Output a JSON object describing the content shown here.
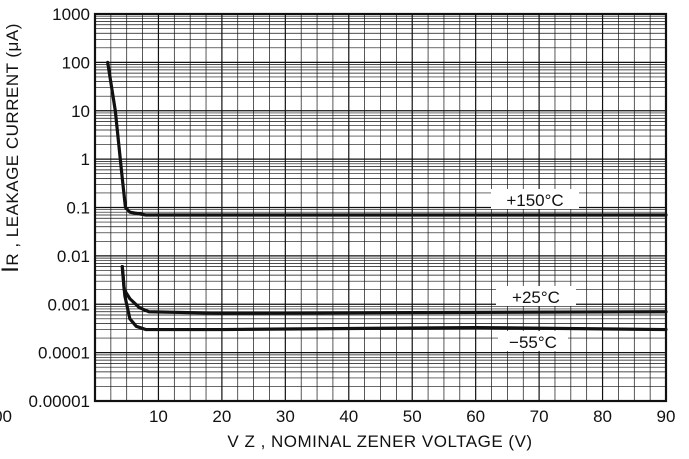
{
  "chart_data": {
    "type": "line",
    "title": "",
    "xlabel": "V Z , NOMINAL ZENER VOLTAGE (V)",
    "ylabel": "IR , LEAKAGE CURRENT (μA)",
    "ylabel_parts": {
      "symbol": "I",
      "subscript": "R",
      "text": " ,  LEAKAGE  CURRENT  (μA)"
    },
    "x_scale": "linear",
    "y_scale": "log",
    "xlim": [
      0,
      90
    ],
    "ylim": [
      1e-05,
      1000
    ],
    "x_ticks": [
      0,
      10,
      20,
      30,
      40,
      50,
      60,
      70,
      80,
      90
    ],
    "x_tick_labels": [
      "00",
      "10",
      "20",
      "30",
      "40",
      "50",
      "60",
      "70",
      "80",
      "90"
    ],
    "y_ticks": [
      1e-05,
      0.0001,
      0.001,
      0.01,
      0.1,
      1,
      10,
      100,
      1000
    ],
    "y_tick_labels": [
      "0.00001",
      "0.0001",
      "0.001",
      "0.01",
      "0.1",
      "1",
      "10",
      "100",
      "1000"
    ],
    "grid": true,
    "series": [
      {
        "name": "+150°C",
        "points": [
          [
            2,
            100
          ],
          [
            3.2,
            10
          ],
          [
            4.3,
            0.4
          ],
          [
            4.8,
            0.1
          ],
          [
            5.5,
            0.08
          ],
          [
            8,
            0.07
          ],
          [
            30,
            0.07
          ],
          [
            60,
            0.07
          ],
          [
            90,
            0.07
          ]
        ]
      },
      {
        "name": "+25°C",
        "points": [
          [
            4.3,
            0.006
          ],
          [
            4.6,
            0.002
          ],
          [
            5.5,
            0.0013
          ],
          [
            7,
            0.00085
          ],
          [
            8.5,
            0.0007
          ],
          [
            20,
            0.00065
          ],
          [
            60,
            0.00068
          ],
          [
            90,
            0.0007
          ]
        ]
      },
      {
        "name": "−55°C",
        "points": [
          [
            4.3,
            0.006
          ],
          [
            4.7,
            0.0015
          ],
          [
            5.5,
            0.0005
          ],
          [
            6.5,
            0.00035
          ],
          [
            8,
            0.0003
          ],
          [
            20,
            0.0003
          ],
          [
            60,
            0.00033
          ],
          [
            90,
            0.0003
          ]
        ]
      }
    ],
    "legend_placement": "inline labels near right end of each curve"
  }
}
